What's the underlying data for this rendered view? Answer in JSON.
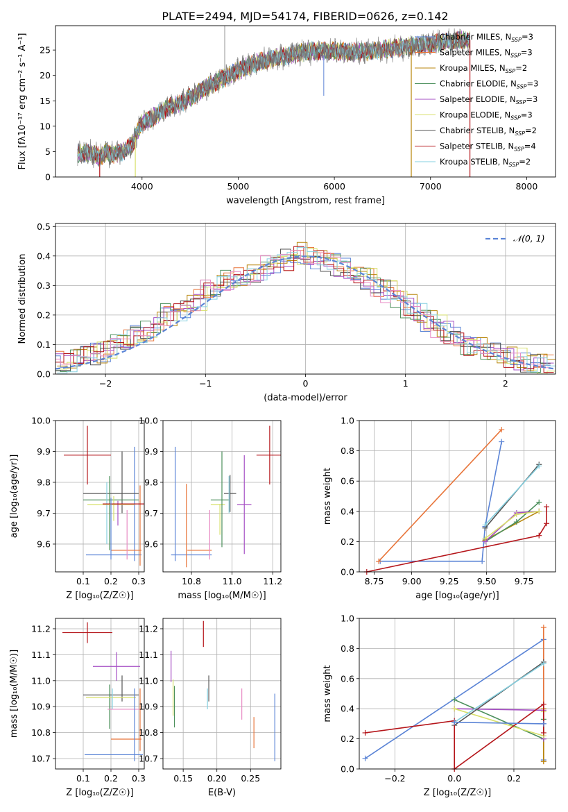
{
  "figure_title": "PLATE=2494, MJD=54174, FIBERID=0626, z=0.142",
  "colors": {
    "Chabrier MILES": "#5b84d6",
    "Salpeter MILES": "#e8753a",
    "Kroupa MILES": "#b8860b",
    "Chabrier ELODIE": "#4b8f5b",
    "Salpeter ELODIE": "#a64fc4",
    "Kroupa ELODIE": "#d8e06a",
    "Chabrier STELIB": "#555555",
    "Salpeter STELIB": "#b5161b",
    "Kroupa STELIB": "#86d0e0",
    "pink": "#e88bc4",
    "grid": "#b0b0b0",
    "gaussian": "#5b84d6"
  },
  "chart_data": [
    {
      "id": "spectrum",
      "type": "line",
      "xlabel": "wavelength [Angstrom, rest frame]",
      "ylabel": "Flux [fλ10⁻¹⁷ erg cm⁻² s⁻¹ A⁻¹]",
      "xlim": [
        3100,
        8300
      ],
      "ylim": [
        0,
        29.8
      ],
      "xticks": [
        4000,
        5000,
        6000,
        7000,
        8000
      ],
      "yticks": [
        0,
        5,
        10,
        15,
        20,
        25
      ],
      "grid": false,
      "legend_position": "top-right",
      "continuum": {
        "x": [
          3330,
          3500,
          3560,
          3620,
          3700,
          3800,
          3900,
          3990,
          4100,
          4250,
          4400,
          4600,
          4800,
          5000,
          5200,
          5400,
          5600,
          5800,
          6000,
          6200,
          6400,
          6600,
          6800,
          7000,
          7200,
          7400
        ],
        "y": [
          4.7,
          4.6,
          3.8,
          4.8,
          4.3,
          5.0,
          6.5,
          10.5,
          11.5,
          13.5,
          14.5,
          16.8,
          19.0,
          21.0,
          22.5,
          23.5,
          24.3,
          24.8,
          24.8,
          24.6,
          24.8,
          25.3,
          25.8,
          26.2,
          26.8,
          27.0
        ]
      },
      "legend": [
        {
          "label": "Chabrier MILES, N",
          "sub": "SSP",
          "tail": "=3"
        },
        {
          "label": "Salpeter MILES, N",
          "sub": "SSP",
          "tail": "=3"
        },
        {
          "label": "Kroupa MILES, N",
          "sub": "SSP",
          "tail": "=2"
        },
        {
          "label": "Chabrier ELODIE, N",
          "sub": "SSP",
          "tail": "=3"
        },
        {
          "label": "Salpeter ELODIE, N",
          "sub": "SSP",
          "tail": "=3"
        },
        {
          "label": "Kroupa ELODIE, N",
          "sub": "SSP",
          "tail": "=3"
        },
        {
          "label": "Chabrier STELIB, N",
          "sub": "SSP",
          "tail": "=2"
        },
        {
          "label": "Salpeter STELIB, N",
          "sub": "SSP",
          "tail": "=4"
        },
        {
          "label": "Kroupa STELIB, N",
          "sub": "SSP",
          "tail": "=2"
        }
      ]
    },
    {
      "id": "residuals",
      "type": "histogram",
      "xlabel": "(data-model)/error",
      "ylabel": "Normed distribution",
      "xlim": [
        -2.5,
        2.5
      ],
      "ylim": [
        0,
        0.51
      ],
      "xticks": [
        -2,
        -1,
        0,
        1,
        2
      ],
      "yticks": [
        0.0,
        0.1,
        0.2,
        0.3,
        0.4,
        0.5
      ],
      "grid": true,
      "legend": [
        {
          "label": "𝒩(0, 1)"
        }
      ],
      "legend_position": "top-right",
      "bin_width": 0.1,
      "bins_start": -2.5,
      "envelope": [
        0.04,
        0.04,
        0.05,
        0.06,
        0.07,
        0.08,
        0.1,
        0.12,
        0.14,
        0.15,
        0.17,
        0.2,
        0.22,
        0.23,
        0.25,
        0.28,
        0.3,
        0.32,
        0.33,
        0.34,
        0.35,
        0.37,
        0.38,
        0.39,
        0.41,
        0.41,
        0.39,
        0.38,
        0.37,
        0.36,
        0.34,
        0.32,
        0.3,
        0.28,
        0.26,
        0.23,
        0.2,
        0.18,
        0.16,
        0.14,
        0.12,
        0.1,
        0.09,
        0.08,
        0.07,
        0.06,
        0.05,
        0.04,
        0.035,
        0.03
      ]
    },
    {
      "id": "age_vs_Z",
      "type": "errorbar",
      "xlabel": "Z [log₁₀(Z/Z☉)]",
      "ylabel": "age  [log₁₀(age/yr)]",
      "xlim": [
        0.0,
        0.32
      ],
      "ylim": [
        9.51,
        10.0
      ],
      "xticks": [
        0.1,
        0.2,
        0.3
      ],
      "yticks": [
        9.6,
        9.7,
        9.8,
        9.9,
        10.0
      ],
      "points": [
        {
          "s": "Salpeter STELIB",
          "x": 0.115,
          "xe": 0.085,
          "y": 9.888,
          "ye": 0.095
        },
        {
          "s": "Chabrier MILES",
          "x": 0.21,
          "xe": 0.1,
          "y": 9.565,
          "ye": 0.0
        },
        {
          "s": "Chabrier MILES",
          "x": 0.285,
          "xe": 0.0,
          "y": 9.73,
          "ye": 0.185
        },
        {
          "s": "Salpeter MILES",
          "x": 0.255,
          "xe": 0.055,
          "y": 9.58,
          "ye": 0.0
        },
        {
          "s": "Salpeter MILES",
          "x": 0.305,
          "xe": 0.0,
          "y": 9.66,
          "ye": 0.13
        },
        {
          "s": "Chabrier STELIB",
          "x": 0.24,
          "xe": 0.0,
          "y": 9.8,
          "ye": 0.1
        },
        {
          "s": "Chabrier STELIB",
          "x": 0.2,
          "xe": 0.1,
          "y": 9.764,
          "ye": 0.0
        },
        {
          "s": "Chabrier ELODIE",
          "x": 0.2,
          "xe": 0.1,
          "y": 9.743,
          "ye": 0.0
        },
        {
          "s": "Chabrier ELODIE",
          "x": 0.195,
          "xe": 0.0,
          "y": 9.7,
          "ye": 0.12
        },
        {
          "s": "Kroupa STELIB",
          "x": 0.185,
          "xe": 0.0,
          "y": 9.7,
          "ye": 0.1
        },
        {
          "s": "Kroupa ELODIE",
          "x": 0.2,
          "xe": 0.085,
          "y": 9.728,
          "ye": 0.0
        },
        {
          "s": "Kroupa ELODIE",
          "x": 0.21,
          "xe": 0.0,
          "y": 9.715,
          "ye": 0.04
        },
        {
          "s": "Salpeter ELODIE",
          "x": 0.225,
          "xe": 0.0,
          "y": 9.7,
          "ye": 0.04
        },
        {
          "s": "pink",
          "x": 0.258,
          "xe": 0.0,
          "y": 9.63,
          "ye": 0.08
        },
        {
          "s": "Salpeter STELIB",
          "x": 0.245,
          "xe": 0.075,
          "y": 9.73,
          "ye": 0.0
        },
        {
          "s": "Chabrier MILES",
          "x": 0.2,
          "xe": 0.0,
          "y": 9.65,
          "ye": 0.1
        }
      ]
    },
    {
      "id": "age_vs_mass",
      "type": "errorbar",
      "xlabel": "mass [log₁₀(M/M☉)]",
      "ylabel": "",
      "xlim": [
        10.66,
        11.24
      ],
      "ylim": [
        9.51,
        10.0
      ],
      "xticks": [
        10.8,
        11.0,
        11.2
      ],
      "yticks": [
        9.6,
        9.7,
        9.8,
        9.9,
        10.0
      ],
      "points": [
        {
          "s": "Salpeter STELIB",
          "x": 11.185,
          "xe": 0.065,
          "y": 9.888,
          "ye": 0.095
        },
        {
          "s": "Chabrier MILES",
          "x": 10.72,
          "xe": 0.0,
          "y": 9.73,
          "ye": 0.185
        },
        {
          "s": "Chabrier MILES",
          "x": 10.8,
          "xe": 0.1,
          "y": 9.565,
          "ye": 0.0
        },
        {
          "s": "Salpeter MILES",
          "x": 10.775,
          "xe": 0.0,
          "y": 9.66,
          "ye": 0.135
        },
        {
          "s": "Salpeter MILES",
          "x": 10.84,
          "xe": 0.06,
          "y": 9.58,
          "ye": 0.0
        },
        {
          "s": "pink",
          "x": 10.89,
          "xe": 0.0,
          "y": 9.63,
          "ye": 0.08
        },
        {
          "s": "Kroupa ELODIE",
          "x": 10.94,
          "xe": 0.0,
          "y": 9.68,
          "ye": 0.05
        },
        {
          "s": "Kroupa ELODIE",
          "x": 10.93,
          "xe": 0.035,
          "y": 9.728,
          "ye": 0.0
        },
        {
          "s": "Chabrier ELODIE",
          "x": 10.95,
          "xe": 0.0,
          "y": 9.745,
          "ye": 0.155
        },
        {
          "s": "Chabrier ELODIE",
          "x": 10.94,
          "xe": 0.045,
          "y": 9.743,
          "ye": 0.0
        },
        {
          "s": "Chabrier STELIB",
          "x": 10.99,
          "xe": 0.0,
          "y": 9.764,
          "ye": 0.06
        },
        {
          "s": "Chabrier STELIB",
          "x": 10.99,
          "xe": 0.03,
          "y": 9.764,
          "ye": 0.0
        },
        {
          "s": "Kroupa STELIB",
          "x": 10.985,
          "xe": 0.0,
          "y": 9.76,
          "ye": 0.06
        },
        {
          "s": "Salpeter ELODIE",
          "x": 11.06,
          "xe": 0.0,
          "y": 9.728,
          "ye": 0.16
        },
        {
          "s": "Salpeter ELODIE",
          "x": 11.06,
          "xe": 0.035,
          "y": 9.728,
          "ye": 0.0
        }
      ]
    },
    {
      "id": "mass_weight_vs_age",
      "type": "line",
      "xlabel": "age  [log₁₀(age/yr)]",
      "ylabel": "mass weight",
      "xlim": [
        8.65,
        9.96
      ],
      "ylim": [
        0.0,
        1.0
      ],
      "xticks": [
        8.75,
        9.0,
        9.25,
        9.5,
        9.75
      ],
      "yticks": [
        0.0,
        0.2,
        0.4,
        0.6,
        0.8,
        1.0
      ],
      "grid": true,
      "series": [
        {
          "s": "Chabrier MILES",
          "x": [
            8.79,
            9.47,
            9.49,
            9.6
          ],
          "y": [
            0.07,
            0.07,
            0.3,
            0.86
          ]
        },
        {
          "s": "Salpeter MILES",
          "x": [
            8.78,
            9.6
          ],
          "y": [
            0.07,
            0.94
          ]
        },
        {
          "s": "Kroupa MILES",
          "x": [
            9.49,
            9.85
          ],
          "y": [
            0.21,
            0.4
          ]
        },
        {
          "s": "Chabrier ELODIE",
          "x": [
            9.49,
            9.7,
            9.85
          ],
          "y": [
            0.2,
            0.33,
            0.46
          ]
        },
        {
          "s": "Salpeter ELODIE",
          "x": [
            9.49,
            9.7,
            9.85
          ],
          "y": [
            0.2,
            0.39,
            0.4
          ]
        },
        {
          "s": "Kroupa ELODIE",
          "x": [
            9.49,
            9.7,
            9.85
          ],
          "y": [
            0.22,
            0.38,
            0.4
          ]
        },
        {
          "s": "Chabrier STELIB",
          "x": [
            9.49,
            9.85
          ],
          "y": [
            0.29,
            0.71
          ]
        },
        {
          "s": "Salpeter STELIB",
          "x": [
            8.7,
            9.85,
            9.9,
            9.9
          ],
          "y": [
            0.0,
            0.24,
            0.32,
            0.43
          ]
        },
        {
          "s": "Kroupa STELIB",
          "x": [
            9.49,
            9.85
          ],
          "y": [
            0.31,
            0.7
          ]
        }
      ]
    },
    {
      "id": "mass_vs_Z",
      "type": "errorbar",
      "xlabel": "Z [log₁₀(Z/Z☉)]",
      "ylabel": "mass [log₁₀(M/M☉)]",
      "xlim": [
        0.0,
        0.32
      ],
      "ylim": [
        10.66,
        11.24
      ],
      "xticks": [
        0.1,
        0.2,
        0.3
      ],
      "yticks": [
        10.7,
        10.8,
        10.9,
        11.0,
        11.1,
        11.2
      ],
      "points": [
        {
          "s": "Salpeter STELIB",
          "x": 0.115,
          "xe": 0.09,
          "y": 11.185,
          "ye": 0.04
        },
        {
          "s": "Salpeter ELODIE",
          "x": 0.22,
          "xe": 0.085,
          "y": 11.055,
          "ye": 0.055
        },
        {
          "s": "Chabrier STELIB",
          "x": 0.24,
          "xe": 0.0,
          "y": 10.97,
          "ye": 0.05
        },
        {
          "s": "Chabrier STELIB",
          "x": 0.2,
          "xe": 0.1,
          "y": 10.945,
          "ye": 0.0
        },
        {
          "s": "Chabrier ELODIE",
          "x": 0.195,
          "xe": 0.0,
          "y": 10.9,
          "ye": 0.085
        },
        {
          "s": "Kroupa ELODIE",
          "x": 0.2,
          "xe": 0.09,
          "y": 10.935,
          "ye": 0.0
        },
        {
          "s": "Kroupa STELIB",
          "x": 0.205,
          "xe": 0.0,
          "y": 10.93,
          "ye": 0.04
        },
        {
          "s": "pink",
          "x": 0.258,
          "xe": 0.07,
          "y": 10.89,
          "ye": 0.0
        },
        {
          "s": "Salpeter MILES",
          "x": 0.305,
          "xe": 0.0,
          "y": 10.85,
          "ye": 0.12
        },
        {
          "s": "Salpeter MILES",
          "x": 0.255,
          "xe": 0.055,
          "y": 10.775,
          "ye": 0.0
        },
        {
          "s": "Chabrier MILES",
          "x": 0.285,
          "xe": 0.0,
          "y": 10.83,
          "ye": 0.14
        },
        {
          "s": "Chabrier MILES",
          "x": 0.21,
          "xe": 0.105,
          "y": 10.715,
          "ye": 0.0
        }
      ]
    },
    {
      "id": "mass_vs_EBV",
      "type": "errorbar",
      "xlabel": "E(B-V)",
      "ylabel": "",
      "xlim": [
        0.12,
        0.295
      ],
      "ylim": [
        10.66,
        11.24
      ],
      "xticks": [
        0.15,
        0.2,
        0.25
      ],
      "yticks": [
        10.7,
        10.8,
        10.9,
        11.0,
        11.1,
        11.2
      ],
      "points": [
        {
          "s": "Salpeter STELIB",
          "x": 0.18,
          "xe": 0.0,
          "y": 11.18,
          "ye": 0.05
        },
        {
          "s": "Salpeter ELODIE",
          "x": 0.132,
          "xe": 0.0,
          "y": 11.055,
          "ye": 0.06
        },
        {
          "s": "Chabrier ELODIE",
          "x": 0.137,
          "xe": 0.0,
          "y": 10.9,
          "ye": 0.08
        },
        {
          "s": "Kroupa ELODIE",
          "x": 0.135,
          "xe": 0.0,
          "y": 10.935,
          "ye": 0.07
        },
        {
          "s": "Chabrier STELIB",
          "x": 0.188,
          "xe": 0.0,
          "y": 10.97,
          "ye": 0.05
        },
        {
          "s": "Kroupa STELIB",
          "x": 0.186,
          "xe": 0.0,
          "y": 10.93,
          "ye": 0.04
        },
        {
          "s": "pink",
          "x": 0.237,
          "xe": 0.0,
          "y": 10.91,
          "ye": 0.06
        },
        {
          "s": "Salpeter MILES",
          "x": 0.255,
          "xe": 0.0,
          "y": 10.8,
          "ye": 0.06
        },
        {
          "s": "Chabrier MILES",
          "x": 0.286,
          "xe": 0.0,
          "y": 10.82,
          "ye": 0.13
        }
      ]
    },
    {
      "id": "mass_weight_vs_Z",
      "type": "line",
      "xlabel": "Z [log₁₀(Z/Z☉)]",
      "ylabel": "mass weight",
      "xlim": [
        -0.32,
        0.34
      ],
      "ylim": [
        0.0,
        1.0
      ],
      "xticks": [
        -0.2,
        0.0,
        0.2
      ],
      "yticks": [
        0.0,
        0.2,
        0.4,
        0.6,
        0.8,
        1.0
      ],
      "grid": true,
      "series": [
        {
          "s": "Chabrier MILES",
          "x": [
            -0.3,
            0.3,
            0.3,
            0.3
          ],
          "y": [
            0.07,
            0.86,
            0.06,
            0.3
          ]
        },
        {
          "s": "Salpeter MILES",
          "x": [
            0.3,
            0.3
          ],
          "y": [
            0.94,
            0.05
          ]
        },
        {
          "s": "Kroupa MILES",
          "x": [
            0.3,
            0.3
          ],
          "y": [
            0.4,
            0.05
          ]
        },
        {
          "s": "Chabrier ELODIE",
          "x": [
            0.0,
            0.3,
            0.3
          ],
          "y": [
            0.46,
            0.2,
            0.33
          ]
        },
        {
          "s": "Salpeter ELODIE",
          "x": [
            0.0,
            0.3,
            0.3
          ],
          "y": [
            0.4,
            0.39,
            0.2
          ]
        },
        {
          "s": "Kroupa ELODIE",
          "x": [
            0.0,
            0.3,
            0.3
          ],
          "y": [
            0.4,
            0.22,
            0.38
          ]
        },
        {
          "s": "Chabrier STELIB",
          "x": [
            0.0,
            0.3
          ],
          "y": [
            0.29,
            0.71
          ]
        },
        {
          "s": "Salpeter STELIB",
          "x": [
            -0.3,
            0.0,
            0.0,
            0.3,
            0.3
          ],
          "y": [
            0.24,
            0.32,
            0.0,
            0.43,
            0.24
          ]
        },
        {
          "s": "Kroupa STELIB",
          "x": [
            0.0,
            0.3
          ],
          "y": [
            0.31,
            0.7
          ]
        },
        {
          "s": "Chabrier MILES",
          "x": [
            0.0,
            0.3
          ],
          "y": [
            0.31,
            0.3
          ]
        }
      ]
    }
  ]
}
